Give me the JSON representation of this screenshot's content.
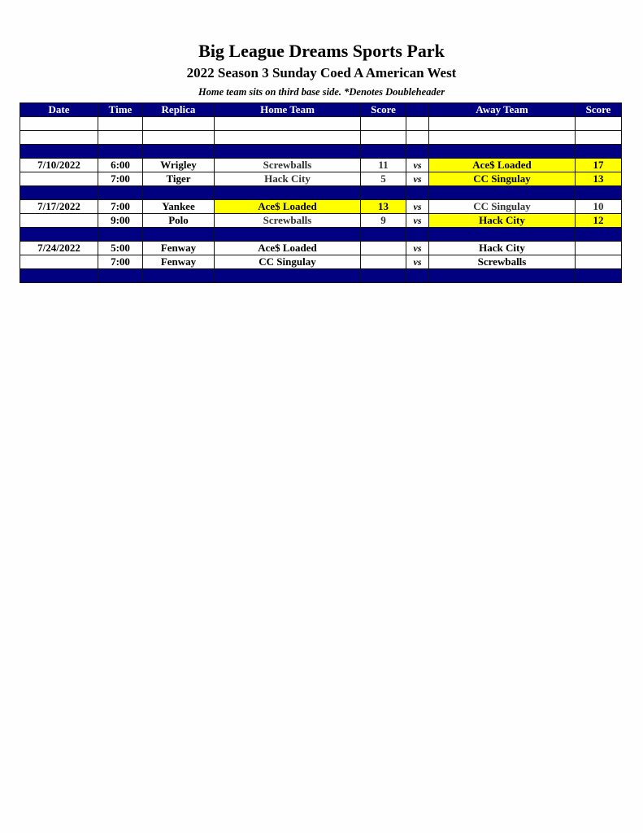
{
  "header": {
    "title": "Big League Dreams Sports Park",
    "subtitle": "2022 Season 3 Sunday Coed A American West",
    "note": "Home team sits on third base side.  *Denotes Doubleheader"
  },
  "columns": [
    "Date",
    "Time",
    "Replica",
    "Home Team",
    "Score",
    "",
    "Away Team",
    "Score"
  ],
  "highlight_color": "#ffff00",
  "separator_color": "#000080",
  "rows": [
    {
      "type": "blank"
    },
    {
      "type": "blank"
    },
    {
      "type": "sep"
    },
    {
      "type": "game",
      "date": "7/10/2022",
      "time": "6:00",
      "replica": "Wrigley",
      "home": "Screwballs",
      "home_score": "11",
      "vs": "vs",
      "away": "Ace$ Loaded",
      "away_score": "17",
      "winner": "away"
    },
    {
      "type": "game",
      "date": "",
      "time": "7:00",
      "replica": "Tiger",
      "home": "Hack City",
      "home_score": "5",
      "vs": "vs",
      "away": "CC Singulay",
      "away_score": "13",
      "winner": "away"
    },
    {
      "type": "sep"
    },
    {
      "type": "game",
      "date": "7/17/2022",
      "time": "7:00",
      "replica": "Yankee",
      "home": "Ace$ Loaded",
      "home_score": "13",
      "vs": "vs",
      "away": "CC Singulay",
      "away_score": "10",
      "winner": "home"
    },
    {
      "type": "game",
      "date": "",
      "time": "9:00",
      "replica": "Polo",
      "home": "Screwballs",
      "home_score": "9",
      "vs": "vs",
      "away": "Hack City",
      "away_score": "12",
      "winner": "away"
    },
    {
      "type": "sep"
    },
    {
      "type": "game",
      "date": "7/24/2022",
      "time": "5:00",
      "replica": "Fenway",
      "home": "Ace$ Loaded",
      "home_score": "",
      "vs": "vs",
      "away": "Hack City",
      "away_score": "",
      "winner": ""
    },
    {
      "type": "game",
      "date": "",
      "time": "7:00",
      "replica": "Fenway",
      "home": "CC Singulay",
      "home_score": "",
      "vs": "vs",
      "away": "Screwballs",
      "away_score": "",
      "winner": ""
    },
    {
      "type": "sep"
    }
  ]
}
